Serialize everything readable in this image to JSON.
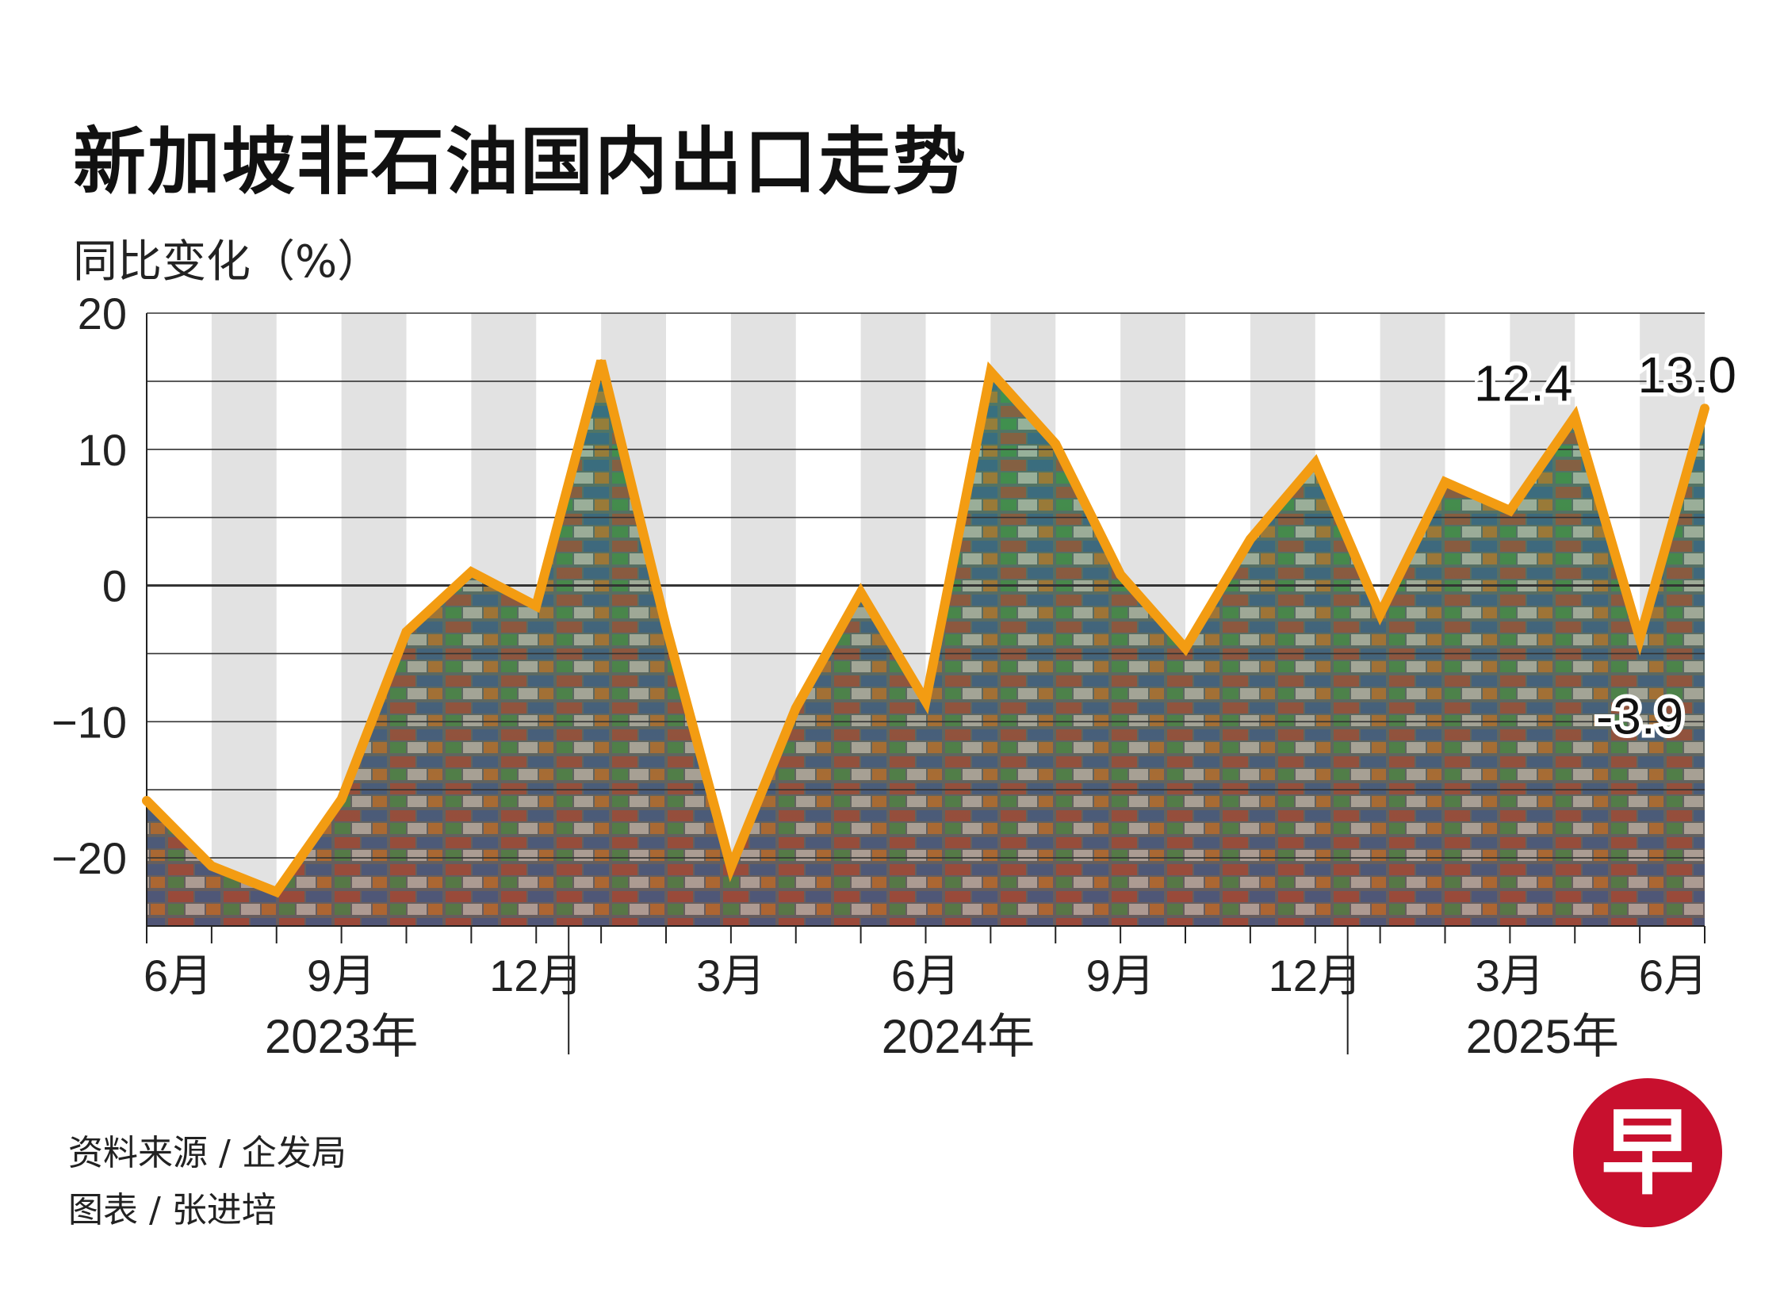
{
  "title": "新加坡非石油国内出口走势",
  "subtitle": "同比变化（%）",
  "footer": {
    "source": "资料来源 / 企发局",
    "credit": "图表 / 张进培"
  },
  "logo": {
    "glyph": "早",
    "color": "#c8102e"
  },
  "colors": {
    "line": "#f39c12",
    "grid": "#333333",
    "band": "#e2e2e2",
    "photo_top": "#3d8a4f",
    "photo_bottom": "#7a4a3a"
  },
  "chart_data": {
    "type": "line",
    "title": "新加坡非石油国内出口走势",
    "ylabel": "同比变化（%）",
    "ylim": [
      -25,
      20
    ],
    "yticks": [
      20,
      10,
      0,
      -10,
      -20
    ],
    "ytick_labels": [
      "20",
      "10",
      "0",
      "−10",
      "−20"
    ],
    "grid": true,
    "x": [
      "2023-06",
      "2023-07",
      "2023-08",
      "2023-09",
      "2023-10",
      "2023-11",
      "2023-12",
      "2024-01",
      "2024-02",
      "2024-03",
      "2024-04",
      "2024-05",
      "2024-06",
      "2024-07",
      "2024-08",
      "2024-09",
      "2024-10",
      "2024-11",
      "2024-12",
      "2025-01",
      "2025-02",
      "2025-03",
      "2025-04",
      "2025-05",
      "2025-06"
    ],
    "x_tick_labels": [
      {
        "x": "2023-06",
        "label": "6月"
      },
      {
        "x": "2023-09",
        "label": "9月"
      },
      {
        "x": "2023-12",
        "label": "12月"
      },
      {
        "x": "2024-03",
        "label": "3月"
      },
      {
        "x": "2024-06",
        "label": "6月"
      },
      {
        "x": "2024-09",
        "label": "9月"
      },
      {
        "x": "2024-12",
        "label": "12月"
      },
      {
        "x": "2025-03",
        "label": "3月"
      },
      {
        "x": "2025-06",
        "label": "6月"
      }
    ],
    "year_labels": [
      {
        "label": "2023年",
        "from": "2023-06",
        "to": "2023-12"
      },
      {
        "label": "2024年",
        "from": "2024-01",
        "to": "2024-12"
      },
      {
        "label": "2025年",
        "from": "2025-01",
        "to": "2025-06"
      }
    ],
    "series": [
      {
        "values": [
          -15.8,
          -20.6,
          -22.5,
          -15.7,
          -3.4,
          1.0,
          -1.5,
          16.5,
          -3.0,
          -20.7,
          -9.0,
          -0.5,
          -8.5,
          15.7,
          10.4,
          0.8,
          -4.6,
          3.4,
          9.0,
          -2.1,
          7.6,
          5.5,
          12.4,
          -3.9,
          13.0
        ]
      }
    ],
    "annotations": [
      {
        "x": "2025-04",
        "y": 12.4,
        "text": "12.4"
      },
      {
        "x": "2025-05",
        "y": -3.9,
        "text": "-3.9"
      },
      {
        "x": "2025-06",
        "y": 13.0,
        "text": "13.0"
      }
    ]
  }
}
